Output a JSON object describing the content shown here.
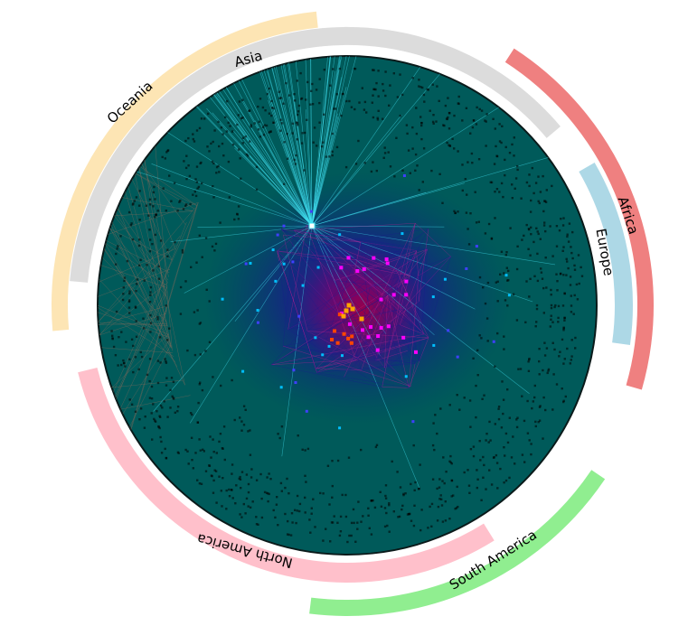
{
  "regions": [
    {
      "key": "asia",
      "label": "Asia",
      "color": "#dcdcdc"
    },
    {
      "key": "oceania",
      "label": "Oceania",
      "color": "#fde5b4"
    },
    {
      "key": "africa",
      "label": "Africa",
      "color": "#ef8080"
    },
    {
      "key": "europe",
      "label": "Europe",
      "color": "#add8e6"
    },
    {
      "key": "south_america",
      "label": "South America",
      "color": "#90ee90"
    },
    {
      "key": "north_america",
      "label": "North America",
      "color": "#ffc0cb"
    }
  ],
  "disk": {
    "fill": "#005a5a",
    "edge": "#0a1a1a"
  },
  "edge_colors": {
    "hub": "#40e0f0",
    "core": "#1a1a8c",
    "hot": "#c02090",
    "periphery": "#8a6a5a"
  },
  "node_colors": [
    "#ffa500",
    "#ff4500",
    "#ff00ff",
    "#4040ff",
    "#00bfff",
    "#000000"
  ]
}
